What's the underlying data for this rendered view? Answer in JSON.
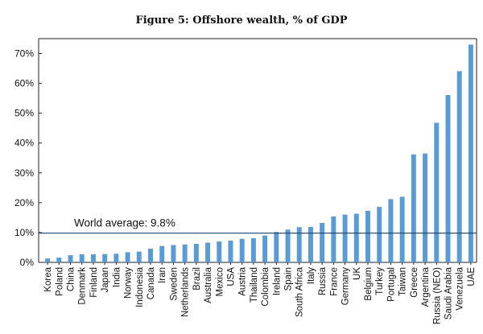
{
  "chart_data": {
    "type": "bar",
    "title": "Figure 5: Offshore wealth, % of GDP",
    "xlabel": "",
    "ylabel": "",
    "ylim": [
      0,
      75
    ],
    "yticks": [
      0,
      10,
      20,
      30,
      40,
      50,
      60,
      70
    ],
    "ytick_labels": [
      "0%",
      "10%",
      "20%",
      "30%",
      "40%",
      "50%",
      "60%",
      "70%"
    ],
    "grid": false,
    "legend": "none",
    "bar_color": "#5B9BD5",
    "categories": [
      "Korea",
      "Poland",
      "China",
      "Denmark",
      "Finland",
      "Japan",
      "India",
      "Norway",
      "Indonesia",
      "Canada",
      "Iran",
      "Sweden",
      "Netherlands",
      "Brazil",
      "Australia",
      "Mexico",
      "USA",
      "Austria",
      "Thailand",
      "Colombia",
      "Ireland",
      "Spain",
      "South Africa",
      "Italy",
      "Russia",
      "France",
      "Germany",
      "UK",
      "Belgium",
      "Turkey",
      "Portugal",
      "Taiwan",
      "Greece",
      "Argentina",
      "Russia (NEO)",
      "Saudi Arabia",
      "Venezuela",
      "UAE"
    ],
    "values": [
      1.3,
      1.6,
      2.4,
      2.7,
      2.7,
      2.8,
      2.9,
      3.4,
      3.6,
      4.6,
      5.5,
      5.8,
      6.0,
      6.2,
      6.6,
      7.0,
      7.3,
      7.9,
      8.1,
      9.0,
      10.2,
      11.0,
      11.8,
      11.9,
      13.2,
      15.4,
      16.0,
      16.3,
      17.3,
      18.6,
      21.2,
      22.0,
      36.2,
      36.5,
      46.8,
      56.1,
      64.1,
      73.0
    ],
    "reference_line": {
      "value": 9.8,
      "label": "World average: 9.8%",
      "color": "#1F3F66"
    }
  }
}
